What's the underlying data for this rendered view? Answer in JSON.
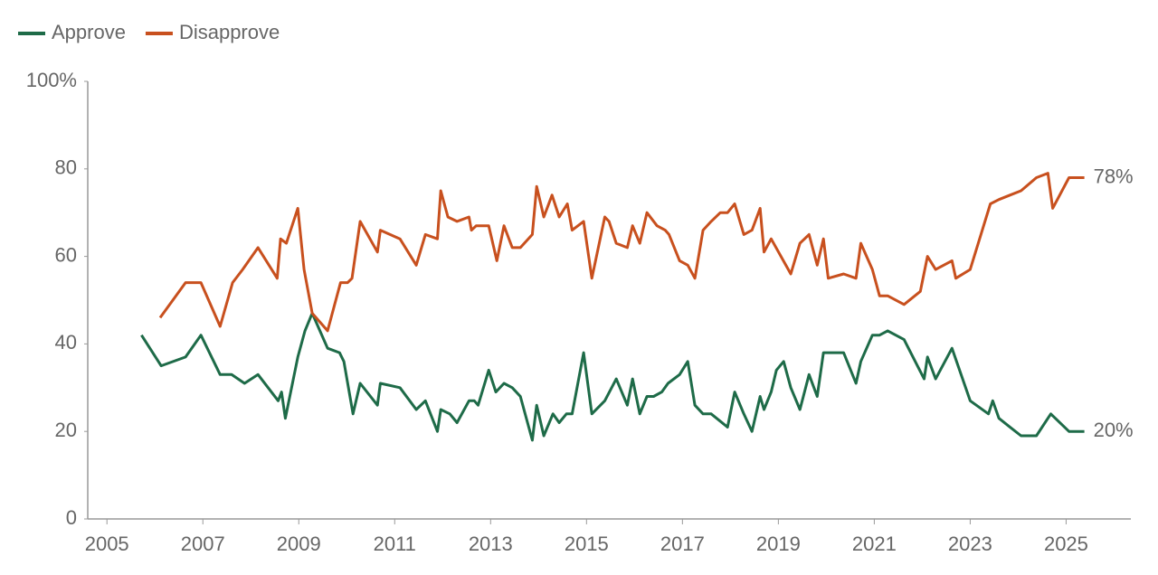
{
  "chart_data": {
    "type": "line",
    "xlim": [
      2004.6,
      2026.35
    ],
    "xticks": [
      2005,
      2007,
      2009,
      2011,
      2013,
      2015,
      2017,
      2019,
      2021,
      2023,
      2025
    ],
    "ylim": [
      0,
      100
    ],
    "yticks": [
      0,
      20,
      40,
      60,
      80,
      {
        "value": 100,
        "label": "100%"
      }
    ],
    "grid": false,
    "legend": "top-left",
    "series": [
      {
        "name": "Approve",
        "color": "#1e6b48",
        "end_label": "20%",
        "x": [
          2005.72,
          2006.13,
          2006.64,
          2006.96,
          2007.36,
          2007.6,
          2007.87,
          2008.15,
          2008.57,
          2008.64,
          2008.72,
          2008.98,
          2009.13,
          2009.28,
          2009.6,
          2009.85,
          2009.94,
          2010.13,
          2010.28,
          2010.64,
          2010.7,
          2011.11,
          2011.45,
          2011.64,
          2011.89,
          2011.96,
          2012.15,
          2012.3,
          2012.55,
          2012.66,
          2012.74,
          2012.96,
          2013.11,
          2013.28,
          2013.45,
          2013.62,
          2013.87,
          2013.96,
          2014.11,
          2014.3,
          2014.43,
          2014.58,
          2014.7,
          2014.94,
          2015.11,
          2015.38,
          2015.62,
          2015.85,
          2015.96,
          2016.11,
          2016.26,
          2016.4,
          2016.57,
          2016.7,
          2016.94,
          2017.11,
          2017.26,
          2017.43,
          2017.6,
          2017.94,
          2018.09,
          2018.28,
          2018.45,
          2018.62,
          2018.7,
          2018.85,
          2018.96,
          2019.11,
          2019.26,
          2019.45,
          2019.64,
          2019.81,
          2019.94,
          2020.36,
          2020.62,
          2020.72,
          2020.96,
          2021.11,
          2021.28,
          2021.62,
          2022.04,
          2022.11,
          2022.28,
          2022.62,
          2023.0,
          2023.38,
          2023.47,
          2023.6,
          2023.83,
          2024.06,
          2024.38,
          2024.68,
          2025.06,
          2025.38
        ],
        "values": [
          42,
          35,
          37,
          42,
          33,
          33,
          31,
          33,
          27,
          29,
          23,
          37,
          43,
          47,
          39,
          38,
          36,
          24,
          31,
          26,
          31,
          30,
          25,
          27,
          20,
          25,
          24,
          22,
          27,
          27,
          26,
          34,
          29,
          31,
          30,
          28,
          18,
          26,
          19,
          24,
          22,
          24,
          24,
          38,
          24,
          27,
          32,
          26,
          32,
          24,
          28,
          28,
          29,
          31,
          33,
          36,
          26,
          24,
          24,
          21,
          29,
          24,
          20,
          28,
          25,
          29,
          34,
          36,
          30,
          25,
          33,
          28,
          38,
          38,
          31,
          36,
          42,
          42,
          43,
          41,
          32,
          37,
          32,
          39,
          27,
          24,
          27,
          23,
          21,
          19,
          19,
          24,
          20,
          20
        ]
      },
      {
        "name": "Disapprove",
        "color": "#c8501e",
        "end_label": "78%",
        "x": [
          2006.11,
          2006.64,
          2006.96,
          2007.36,
          2007.62,
          2007.83,
          2008.15,
          2008.55,
          2008.62,
          2008.74,
          2008.98,
          2009.11,
          2009.28,
          2009.6,
          2009.87,
          2010.02,
          2010.11,
          2010.28,
          2010.64,
          2010.7,
          2011.11,
          2011.45,
          2011.64,
          2011.89,
          2011.96,
          2012.11,
          2012.3,
          2012.55,
          2012.6,
          2012.7,
          2012.96,
          2013.13,
          2013.28,
          2013.45,
          2013.62,
          2013.87,
          2013.96,
          2014.11,
          2014.28,
          2014.43,
          2014.6,
          2014.7,
          2014.94,
          2015.11,
          2015.38,
          2015.47,
          2015.62,
          2015.85,
          2015.96,
          2016.11,
          2016.26,
          2016.47,
          2016.64,
          2016.72,
          2016.94,
          2017.11,
          2017.26,
          2017.43,
          2017.6,
          2017.79,
          2017.94,
          2018.09,
          2018.28,
          2018.45,
          2018.62,
          2018.7,
          2018.85,
          2019.26,
          2019.45,
          2019.64,
          2019.81,
          2019.94,
          2020.04,
          2020.36,
          2020.62,
          2020.72,
          2020.96,
          2021.11,
          2021.28,
          2021.62,
          2021.96,
          2022.11,
          2022.28,
          2022.62,
          2022.7,
          2023.0,
          2023.42,
          2023.6,
          2023.83,
          2024.06,
          2024.38,
          2024.62,
          2024.72,
          2025.06,
          2025.38
        ],
        "values": [
          46,
          54,
          54,
          44,
          54,
          57,
          62,
          55,
          64,
          63,
          71,
          57,
          47,
          43,
          54,
          54,
          55,
          68,
          61,
          66,
          64,
          58,
          65,
          64,
          75,
          69,
          68,
          69,
          66,
          67,
          67,
          59,
          67,
          62,
          62,
          65,
          76,
          69,
          74,
          69,
          72,
          66,
          68,
          55,
          69,
          68,
          63,
          62,
          67,
          63,
          70,
          67,
          66,
          65,
          59,
          58,
          55,
          66,
          68,
          70,
          70,
          72,
          65,
          66,
          71,
          61,
          64,
          56,
          63,
          65,
          58,
          64,
          55,
          56,
          55,
          63,
          57,
          51,
          51,
          49,
          52,
          60,
          57,
          59,
          55,
          57,
          72,
          73,
          74,
          75,
          78,
          79,
          71,
          78,
          78
        ]
      }
    ]
  }
}
